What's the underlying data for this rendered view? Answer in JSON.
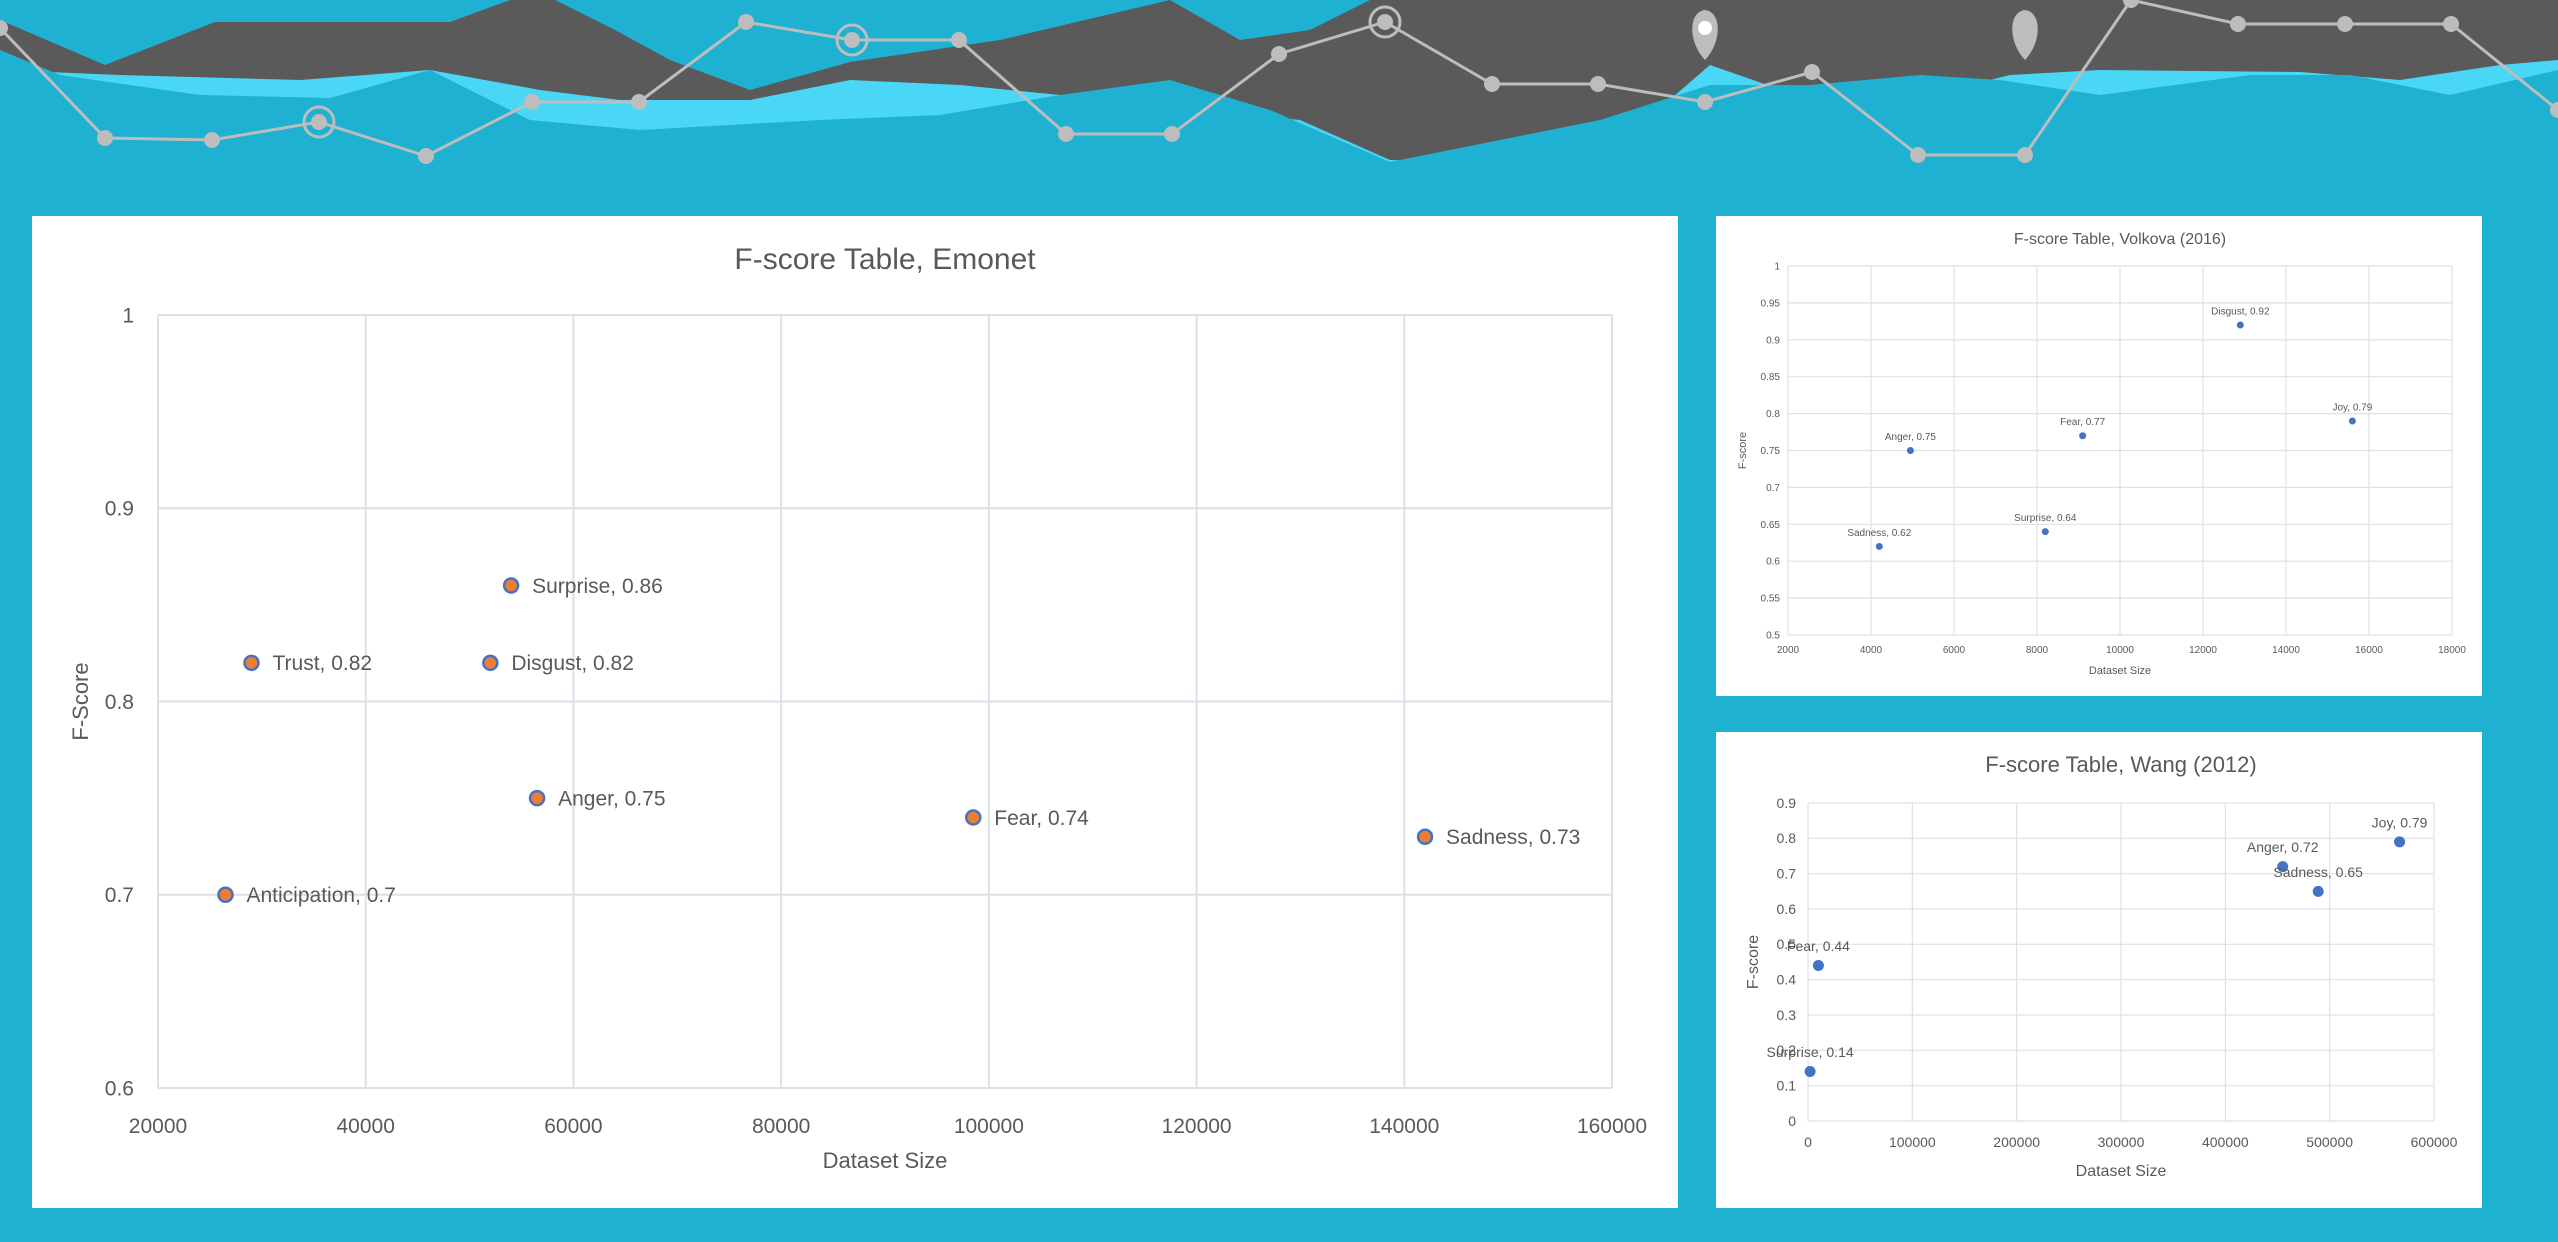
{
  "colors": {
    "background": "#1eb1d2",
    "banner_dark": "#5a5a5a",
    "banner_light": "#4ad7f5",
    "banner_line": "#bdbdbd",
    "marker_orange": "#ed7d31",
    "marker_blue": "#4472c4",
    "grid": "#d9e2e8",
    "text": "#595959"
  },
  "banner": {
    "icons": [
      "target-icon",
      "target-icon",
      "target-icon",
      "map-pin-icon",
      "map-pin-icon"
    ]
  },
  "chart_data": [
    {
      "type": "scatter",
      "title": "F-score Table, Emonet",
      "xlabel": "Dataset Size",
      "ylabel": "F-Score",
      "xlim": [
        20000,
        160000
      ],
      "ylim": [
        0.6,
        1
      ],
      "xticks": [
        20000,
        40000,
        60000,
        80000,
        100000,
        120000,
        140000,
        160000
      ],
      "yticks": [
        0.6,
        0.7,
        0.8,
        0.9,
        1
      ],
      "xtick_labels": [
        "20000",
        "40000",
        "60000",
        "80000",
        "100000",
        "120000",
        "140000",
        "160000"
      ],
      "ytick_labels": [
        "0.6",
        "0.7",
        "0.8",
        "0.9",
        "1"
      ],
      "grid": true,
      "marker_color": "#ed7d31",
      "marker_edge": "#4472c4",
      "points": [
        {
          "x": 29000,
          "y": 0.82,
          "label": "Trust, 0.82"
        },
        {
          "x": 54000,
          "y": 0.86,
          "label": "Surprise, 0.86"
        },
        {
          "x": 52000,
          "y": 0.82,
          "label": "Disgust, 0.82"
        },
        {
          "x": 56500,
          "y": 0.75,
          "label": "Anger, 0.75"
        },
        {
          "x": 26500,
          "y": 0.7,
          "label": "Anticipation, 0.7"
        },
        {
          "x": 98500,
          "y": 0.74,
          "label": "Fear, 0.74"
        },
        {
          "x": 142000,
          "y": 0.73,
          "label": "Sadness, 0.73"
        }
      ]
    },
    {
      "type": "scatter",
      "title": "F-score Table, Volkova (2016)",
      "xlabel": "Dataset Size",
      "ylabel": "F-score",
      "xlim": [
        2000,
        18000
      ],
      "ylim": [
        0.5,
        1
      ],
      "xticks": [
        2000,
        4000,
        6000,
        8000,
        10000,
        12000,
        14000,
        16000,
        18000
      ],
      "yticks": [
        0.5,
        0.55,
        0.6,
        0.65,
        0.7,
        0.75,
        0.8,
        0.85,
        0.9,
        0.95,
        1
      ],
      "xtick_labels": [
        "2000",
        "4000",
        "6000",
        "8000",
        "10000",
        "12000",
        "14000",
        "16000",
        "18000"
      ],
      "ytick_labels": [
        "0.5",
        "0.55",
        "0.6",
        "0.65",
        "0.7",
        "0.75",
        "0.8",
        "0.85",
        "0.9",
        "0.95",
        "1"
      ],
      "grid": true,
      "marker_color": "#4472c4",
      "points": [
        {
          "x": 4200,
          "y": 0.62,
          "label": "Sadness, 0.62"
        },
        {
          "x": 4950,
          "y": 0.75,
          "label": "Anger, 0.75"
        },
        {
          "x": 8200,
          "y": 0.64,
          "label": "Surprise, 0.64"
        },
        {
          "x": 9100,
          "y": 0.77,
          "label": "Fear, 0.77"
        },
        {
          "x": 12900,
          "y": 0.92,
          "label": "Disgust, 0.92"
        },
        {
          "x": 15600,
          "y": 0.79,
          "label": "Joy, 0.79"
        }
      ]
    },
    {
      "type": "scatter",
      "title": "F-score Table, Wang (2012)",
      "xlabel": "Dataset Size",
      "ylabel": "F-score",
      "xlim": [
        0,
        600000
      ],
      "ylim": [
        0,
        0.9
      ],
      "xticks": [
        0,
        100000,
        200000,
        300000,
        400000,
        500000,
        600000
      ],
      "yticks": [
        0,
        0.1,
        0.2,
        0.3,
        0.4,
        0.5,
        0.6,
        0.7,
        0.8,
        0.9
      ],
      "xtick_labels": [
        "0",
        "100000",
        "200000",
        "300000",
        "400000",
        "500000",
        "600000"
      ],
      "ytick_labels": [
        "0",
        "0.1",
        "0.2",
        "0.3",
        "0.4",
        "0.5",
        "0.6",
        "0.7",
        "0.8",
        "0.9"
      ],
      "grid": true,
      "marker_color": "#4472c4",
      "points": [
        {
          "x": 10000,
          "y": 0.44,
          "label": "Fear, 0.44"
        },
        {
          "x": 2000,
          "y": 0.14,
          "label": "Surprise, 0.14"
        },
        {
          "x": 455000,
          "y": 0.72,
          "label": "Anger, 0.72"
        },
        {
          "x": 489000,
          "y": 0.65,
          "label": "Sadness, 0.65"
        },
        {
          "x": 567000,
          "y": 0.79,
          "label": "Joy, 0.79"
        }
      ]
    }
  ]
}
